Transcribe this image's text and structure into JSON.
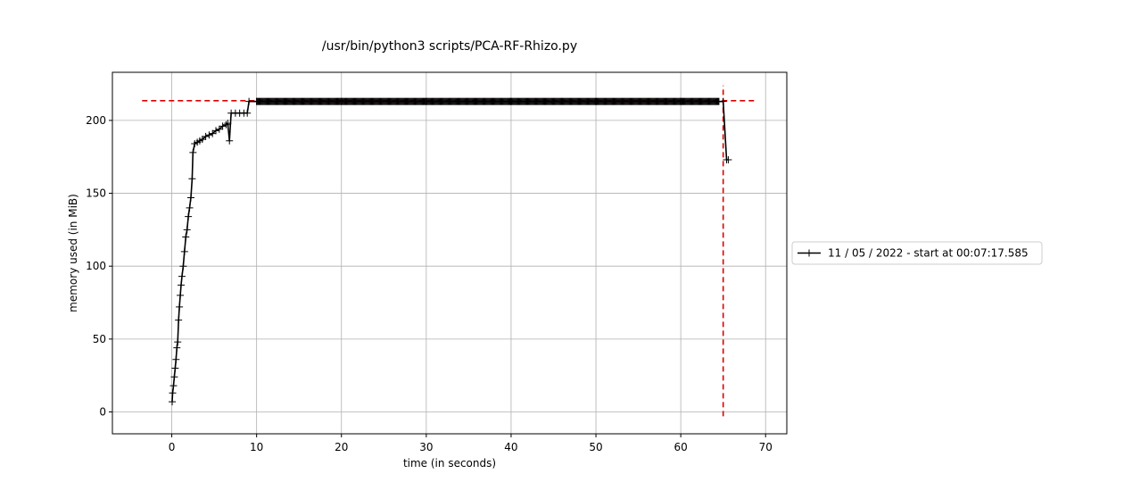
{
  "chart_data": {
    "type": "line",
    "title": "/usr/bin/python3 scripts/PCA-RF-Rhizo.py",
    "xlabel": "time (in seconds)",
    "ylabel": "memory used (in MiB)",
    "xlim": [
      -7,
      72.5
    ],
    "ylim": [
      -15,
      233
    ],
    "x_ticks": [
      0,
      10,
      20,
      30,
      40,
      50,
      60,
      70
    ],
    "y_ticks": [
      0,
      50,
      100,
      150,
      200
    ],
    "grid": true,
    "legend": {
      "placement": "outside-right",
      "entries": [
        "11 / 05 / 2022 - start at 00:07:17.585"
      ]
    },
    "colors": {
      "series": "#000000",
      "reference": "#dd0000",
      "grid": "#b0b0b0"
    },
    "series": [
      {
        "name": "11 / 05 / 2022 - start at 00:07:17.585",
        "x": [
          0.05,
          0.1,
          0.2,
          0.3,
          0.4,
          0.5,
          0.6,
          0.7,
          0.8,
          0.9,
          1.0,
          1.1,
          1.2,
          1.35,
          1.5,
          1.65,
          1.8,
          1.95,
          2.1,
          2.25,
          2.4,
          2.5,
          2.7,
          3.0,
          3.3,
          3.6,
          4.0,
          4.4,
          4.8,
          5.2,
          5.6,
          6.0,
          6.4,
          6.6,
          6.8,
          7.0,
          7.5,
          8.0,
          8.5,
          8.9,
          9.1,
          10,
          20,
          30,
          40,
          50,
          60,
          64.5,
          65.0,
          65.4,
          65.6
        ],
        "y": [
          7,
          13,
          18,
          24,
          30,
          36,
          44,
          48,
          63,
          72,
          80,
          87,
          93,
          100,
          110,
          120,
          125,
          134,
          140,
          147,
          160,
          178,
          184,
          185,
          186,
          187,
          189,
          190,
          191,
          193,
          194,
          196,
          197,
          198,
          186,
          205,
          205,
          205,
          205,
          205,
          213,
          213,
          213,
          213,
          213,
          213,
          213,
          213,
          213,
          173,
          173
        ]
      }
    ],
    "reference_lines": [
      {
        "orientation": "horizontal",
        "value": 213.5,
        "from": -3.5,
        "to": 69
      },
      {
        "orientation": "vertical",
        "value": 65.0,
        "from": -3,
        "to": 224
      }
    ]
  }
}
